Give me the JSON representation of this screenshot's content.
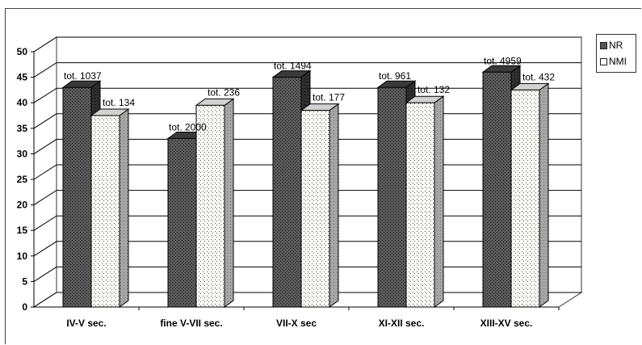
{
  "chart_data": {
    "type": "bar",
    "categories": [
      "IV-V sec.",
      "fine V-VII sec.",
      "VII-X sec",
      "XI-XII sec.",
      "XIII-XV sec."
    ],
    "series": [
      {
        "name": "NR",
        "values": [
          43,
          33,
          45,
          43,
          46
        ],
        "labels": [
          "tot. 1037",
          "tot. 2000",
          "tot. 1494",
          "tot. 961",
          "tot. 4959"
        ],
        "fill": "#555555",
        "pattern": "dotted-dark"
      },
      {
        "name": "NMI",
        "values": [
          37.5,
          39.5,
          38.5,
          40,
          42.5
        ],
        "labels": [
          "tot. 134",
          "tot. 236",
          "tot. 177",
          "tot. 132",
          "tot. 432"
        ],
        "fill": "#ffffff",
        "pattern": "dotted-light"
      }
    ],
    "yticks": [
      "0",
      "5",
      "10",
      "15",
      "20",
      "25",
      "30",
      "35",
      "40",
      "45",
      "50"
    ],
    "ylim": [
      0,
      50
    ],
    "grid": true,
    "three_d": true,
    "legend_position": "right",
    "title": "",
    "xlabel": "",
    "ylabel": ""
  }
}
